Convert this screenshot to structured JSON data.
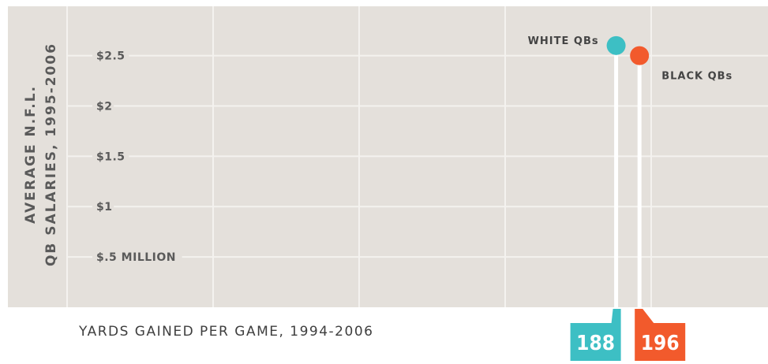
{
  "chart_data": {
    "type": "scatter",
    "ylabel_line1": "AVERAGE N.F.L.",
    "ylabel_line2": "QB SALARIES, 1995-2006",
    "xlabel": "YARDS GAINED PER GAME, 1994-2006",
    "y_ticks": [
      {
        "value": 0.5,
        "label": "$.5 MILLION"
      },
      {
        "value": 1.0,
        "label": "$1"
      },
      {
        "value": 1.5,
        "label": "$1.5"
      },
      {
        "value": 2.0,
        "label": "$2"
      },
      {
        "value": 2.5,
        "label": "$2.5"
      }
    ],
    "ylim": [
      0,
      2.99
    ],
    "xlim": [
      0,
      240
    ],
    "x_gridlines": [
      0,
      50,
      100,
      150,
      200
    ],
    "grid": true,
    "series": [
      {
        "name": "WHITE QBs",
        "x": 188,
        "y": 2.6,
        "color": "#3dbfc4",
        "flag_label": "188"
      },
      {
        "name": "BLACK QBs",
        "x": 196,
        "y": 2.5,
        "color": "#f25a2c",
        "flag_label": "196"
      }
    ]
  },
  "colors": {
    "background": "#ffffff",
    "plot_background": "#e4e0db",
    "gridline": "#f4f2ef",
    "white_qbs": "#3dbfc4",
    "black_qbs": "#f25a2c"
  }
}
